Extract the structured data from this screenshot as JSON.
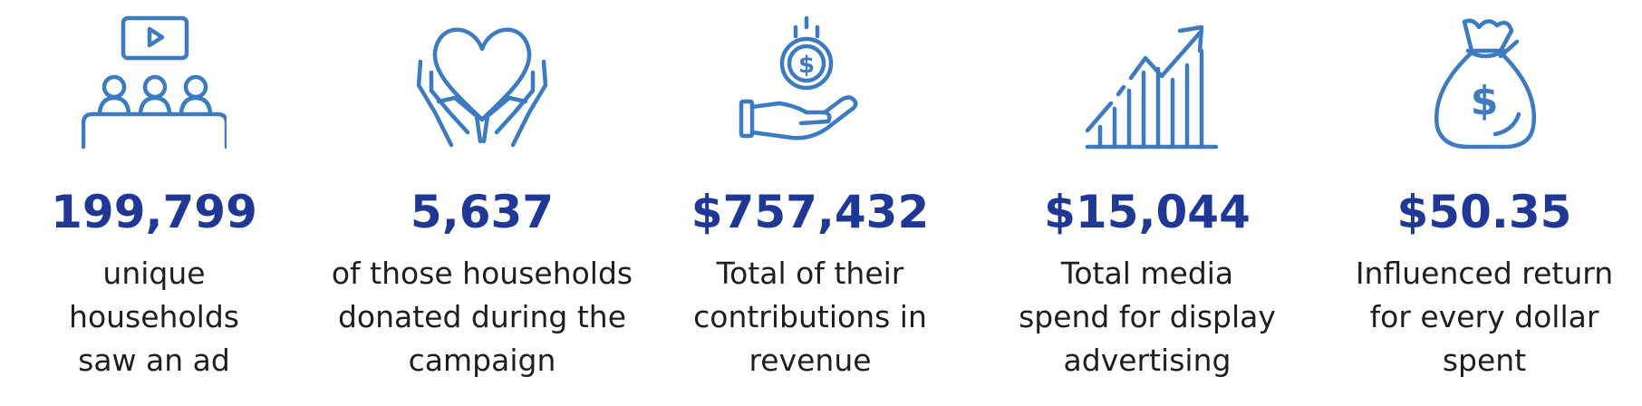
{
  "colors": {
    "icon": "#3c7bc2",
    "value": "#1f3896",
    "text": "#1e1e1e",
    "background": "#ffffff"
  },
  "stats": [
    {
      "icon": "audience-watching-screen-icon",
      "value": "199,799",
      "lines": [
        "unique",
        "households",
        "saw an ad"
      ]
    },
    {
      "icon": "hands-holding-heart-icon",
      "value": "5,637",
      "lines": [
        "of those households",
        "donated during the",
        "campaign"
      ]
    },
    {
      "icon": "hand-receiving-coin-icon",
      "value": "$757,432",
      "lines": [
        "Total of their",
        "contributions in",
        "revenue"
      ]
    },
    {
      "icon": "growth-bar-chart-icon",
      "value": "$15,044",
      "lines": [
        "Total media",
        "spend for display",
        "advertising"
      ]
    },
    {
      "icon": "money-bag-icon",
      "value": "$50.35",
      "lines": [
        "Influenced return",
        "for every dollar",
        "spent"
      ]
    }
  ],
  "icon_glyphs": {
    "dollar": "$"
  }
}
